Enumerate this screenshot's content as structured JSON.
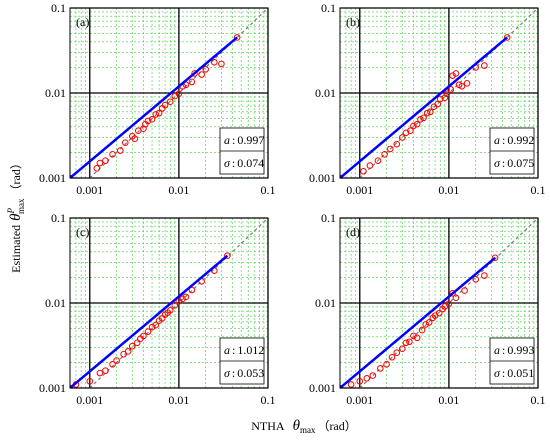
{
  "x_label": {
    "text": "NTHA",
    "symbol": "θ",
    "sub": "max",
    "unit": "（rad）"
  },
  "y_label": {
    "text": "Estimated",
    "symbol": "θ",
    "sup": "P",
    "sub": "max",
    "unit": "（rad）"
  },
  "chart_data": [
    {
      "type": "scatter",
      "label": "(a)",
      "log_scale": true,
      "grid": true,
      "point_color": "#ff0000",
      "fit_color": "#0000ff",
      "xlim": [
        0.0006,
        0.1
      ],
      "ylim": [
        0.001,
        0.1
      ],
      "xticks": [
        0.001,
        0.01,
        0.1
      ],
      "yticks": [
        0.001,
        0.01,
        0.1
      ],
      "minor_ticks": [
        0.0007,
        0.0008,
        0.0009,
        0.002,
        0.003,
        0.004,
        0.005,
        0.006,
        0.007,
        0.008,
        0.009,
        0.02,
        0.03,
        0.04,
        0.05,
        0.06,
        0.07,
        0.08,
        0.09
      ],
      "x": [
        0.0006,
        0.0012,
        0.0013,
        0.0015,
        0.0018,
        0.0022,
        0.0025,
        0.003,
        0.0032,
        0.0035,
        0.004,
        0.0042,
        0.0045,
        0.005,
        0.0055,
        0.006,
        0.0065,
        0.007,
        0.008,
        0.009,
        0.01,
        0.011,
        0.012,
        0.014,
        0.015,
        0.018,
        0.02,
        0.025,
        0.03,
        0.045
      ],
      "y": [
        0.001,
        0.0013,
        0.0015,
        0.0016,
        0.0019,
        0.0021,
        0.0026,
        0.0031,
        0.0029,
        0.0036,
        0.0038,
        0.0043,
        0.0047,
        0.0049,
        0.0056,
        0.0058,
        0.0066,
        0.0072,
        0.0079,
        0.0092,
        0.0098,
        0.012,
        0.0125,
        0.0135,
        0.017,
        0.0165,
        0.019,
        0.023,
        0.022,
        0.045
      ],
      "fit": {
        "x": [
          0.0006,
          0.045
        ],
        "y": [
          0.001,
          0.045
        ]
      },
      "identity": {
        "x": [
          0.001,
          0.1
        ],
        "y": [
          0.001,
          0.1
        ]
      },
      "separator": ":",
      "stats": [
        {
          "label": "a",
          "value": 0.997
        },
        {
          "label": "σ",
          "value": 0.074
        }
      ]
    },
    {
      "type": "scatter",
      "label": "(b)",
      "log_scale": true,
      "grid": true,
      "point_color": "#ff0000",
      "fit_color": "#0000ff",
      "xlim": [
        0.0006,
        0.1
      ],
      "ylim": [
        0.001,
        0.1
      ],
      "xticks": [
        0.001,
        0.01,
        0.1
      ],
      "yticks": [
        0.001,
        0.01,
        0.1
      ],
      "minor_ticks": [
        0.0007,
        0.0008,
        0.0009,
        0.002,
        0.003,
        0.004,
        0.005,
        0.006,
        0.007,
        0.008,
        0.009,
        0.02,
        0.03,
        0.04,
        0.05,
        0.06,
        0.07,
        0.08,
        0.09
      ],
      "x": [
        0.0006,
        0.0011,
        0.0013,
        0.0016,
        0.0019,
        0.0022,
        0.0026,
        0.003,
        0.0033,
        0.0037,
        0.004,
        0.0044,
        0.0048,
        0.0052,
        0.0057,
        0.0062,
        0.0068,
        0.0075,
        0.008,
        0.009,
        0.0095,
        0.0105,
        0.011,
        0.012,
        0.013,
        0.014,
        0.016,
        0.02,
        0.025,
        0.045
      ],
      "y": [
        0.001,
        0.0012,
        0.0014,
        0.0016,
        0.0019,
        0.0022,
        0.0025,
        0.003,
        0.0034,
        0.0036,
        0.0041,
        0.0043,
        0.0049,
        0.0051,
        0.0058,
        0.006,
        0.0069,
        0.0074,
        0.0085,
        0.0088,
        0.0098,
        0.011,
        0.016,
        0.017,
        0.0125,
        0.012,
        0.013,
        0.02,
        0.021,
        0.045
      ],
      "fit": {
        "x": [
          0.0006,
          0.045
        ],
        "y": [
          0.001,
          0.045
        ]
      },
      "identity": {
        "x": [
          0.001,
          0.1
        ],
        "y": [
          0.001,
          0.1
        ]
      },
      "separator": ":",
      "stats": [
        {
          "label": "a",
          "value": 0.992
        },
        {
          "label": "σ",
          "value": 0.075
        }
      ]
    },
    {
      "type": "scatter",
      "label": "(c)",
      "log_scale": true,
      "grid": true,
      "point_color": "#ff0000",
      "fit_color": "#0000ff",
      "xlim": [
        0.0006,
        0.1
      ],
      "ylim": [
        0.001,
        0.1
      ],
      "xticks": [
        0.001,
        0.01,
        0.1
      ],
      "yticks": [
        0.001,
        0.01,
        0.1
      ],
      "minor_ticks": [
        0.0007,
        0.0008,
        0.0009,
        0.002,
        0.003,
        0.004,
        0.005,
        0.006,
        0.007,
        0.008,
        0.009,
        0.02,
        0.03,
        0.04,
        0.05,
        0.06,
        0.07,
        0.08,
        0.09
      ],
      "x": [
        0.0006,
        0.0007,
        0.001,
        0.0013,
        0.0015,
        0.0018,
        0.002,
        0.0024,
        0.0027,
        0.003,
        0.0034,
        0.0037,
        0.004,
        0.0045,
        0.005,
        0.0055,
        0.006,
        0.0065,
        0.007,
        0.0075,
        0.008,
        0.009,
        0.01,
        0.011,
        0.012,
        0.014,
        0.018,
        0.025,
        0.035
      ],
      "y": [
        0.001,
        0.0011,
        0.0012,
        0.0015,
        0.0016,
        0.0019,
        0.0021,
        0.0025,
        0.0027,
        0.0031,
        0.0034,
        0.0038,
        0.0041,
        0.0046,
        0.0052,
        0.0055,
        0.0062,
        0.0066,
        0.0073,
        0.0077,
        0.0082,
        0.0094,
        0.0105,
        0.0112,
        0.0118,
        0.0142,
        0.018,
        0.024,
        0.036
      ],
      "fit": {
        "x": [
          0.0006,
          0.035
        ],
        "y": [
          0.001,
          0.036
        ]
      },
      "identity": {
        "x": [
          0.001,
          0.1
        ],
        "y": [
          0.001,
          0.1
        ]
      },
      "separator": ":",
      "stats": [
        {
          "label": "a",
          "value": 1.012
        },
        {
          "label": "σ",
          "value": 0.053
        }
      ]
    },
    {
      "type": "scatter",
      "label": "(d)",
      "log_scale": true,
      "grid": true,
      "point_color": "#ff0000",
      "fit_color": "#0000ff",
      "xlim": [
        0.0006,
        0.1
      ],
      "ylim": [
        0.001,
        0.1
      ],
      "xticks": [
        0.001,
        0.01,
        0.1
      ],
      "yticks": [
        0.001,
        0.01,
        0.1
      ],
      "minor_ticks": [
        0.0007,
        0.0008,
        0.0009,
        0.002,
        0.003,
        0.004,
        0.005,
        0.006,
        0.007,
        0.008,
        0.009,
        0.02,
        0.03,
        0.04,
        0.05,
        0.06,
        0.07,
        0.08,
        0.09
      ],
      "x": [
        0.0006,
        0.0008,
        0.001,
        0.0012,
        0.0014,
        0.0017,
        0.002,
        0.0023,
        0.0026,
        0.003,
        0.0033,
        0.0036,
        0.004,
        0.0044,
        0.005,
        0.0055,
        0.006,
        0.0066,
        0.007,
        0.0078,
        0.0085,
        0.009,
        0.01,
        0.011,
        0.012,
        0.015,
        0.02,
        0.025,
        0.033
      ],
      "y": [
        0.001,
        0.0011,
        0.0012,
        0.0013,
        0.0014,
        0.0017,
        0.0019,
        0.0023,
        0.0026,
        0.0029,
        0.0034,
        0.0035,
        0.0041,
        0.0039,
        0.0048,
        0.0056,
        0.0059,
        0.0067,
        0.0071,
        0.0076,
        0.0085,
        0.0091,
        0.0098,
        0.013,
        0.0115,
        0.014,
        0.019,
        0.021,
        0.034
      ],
      "fit": {
        "x": [
          0.0006,
          0.033
        ],
        "y": [
          0.001,
          0.034
        ]
      },
      "identity": {
        "x": [
          0.001,
          0.1
        ],
        "y": [
          0.001,
          0.1
        ]
      },
      "separator": ":",
      "stats": [
        {
          "label": "a",
          "value": 0.993
        },
        {
          "label": "σ",
          "value": 0.051
        }
      ]
    }
  ]
}
